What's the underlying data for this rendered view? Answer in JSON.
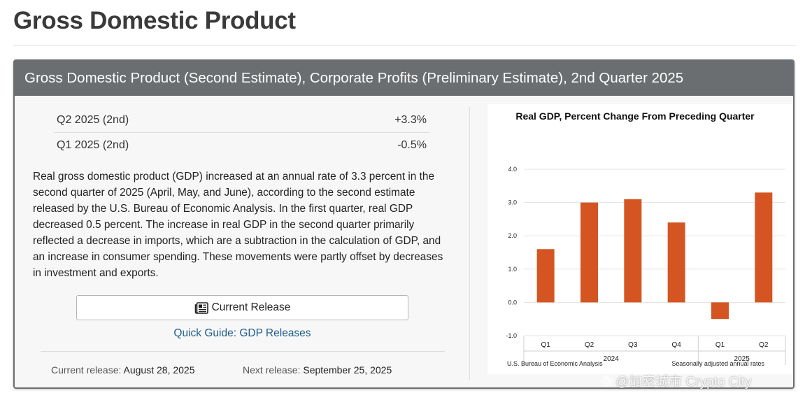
{
  "page": {
    "title": "Gross Domestic Product"
  },
  "card": {
    "header": "Gross Domestic Product (Second Estimate), Corporate Profits (Preliminary Estimate), 2nd Quarter 2025"
  },
  "stats": [
    {
      "label": "Q2 2025 (2nd)",
      "value": "+3.3%"
    },
    {
      "label": "Q1 2025 (2nd)",
      "value": "-0.5%"
    }
  ],
  "description": "Real gross domestic product (GDP) increased at an annual rate of 3.3 percent in the second quarter of 2025 (April, May, and June), according to the second estimate released by the U.S. Bureau of Economic Analysis. In the first quarter, real GDP decreased 0.5 percent. The increase in real GDP in the second quarter primarily reflected a decrease in imports, which are a subtraction in the calculation of GDP, and an increase in consumer spending. These movements were partly offset by decreases in investment and exports.",
  "buttons": {
    "current_release": "Current Release",
    "current_release_icon": "newspaper-icon"
  },
  "links": {
    "quick_guide": "Quick Guide: GDP Releases"
  },
  "release_info": {
    "current_label": "Current release:",
    "current_date": "August 28, 2025",
    "next_label": "Next release:",
    "next_date": "September 25, 2025"
  },
  "colors": {
    "bar": "#d45522",
    "header_bg": "#6b6e70",
    "link": "#1f5d8c"
  },
  "chart_data": {
    "type": "bar",
    "title": "Real GDP, Percent Change From Preceding Quarter",
    "categories": [
      "Q1",
      "Q2",
      "Q3",
      "Q4",
      "Q1",
      "Q2"
    ],
    "groups": [
      {
        "label": "2024",
        "count": 4
      },
      {
        "label": "2025",
        "count": 2
      }
    ],
    "values": [
      1.6,
      3.0,
      3.1,
      2.4,
      -0.5,
      3.3
    ],
    "ylim": [
      -1.0,
      4.0
    ],
    "yticks": [
      "4.0",
      "3.0",
      "2.0",
      "1.0",
      "0.0",
      "-1.0"
    ],
    "ytick_values": [
      4,
      3,
      2,
      1,
      0,
      -1
    ],
    "grid": true,
    "source_note": "U.S. Bureau of Economic Analysis",
    "footnote": "Seasonally adjusted annual rates"
  },
  "watermark": {
    "text": "@加密城市 Crypto City",
    "icon": "diamond-logo-icon"
  }
}
